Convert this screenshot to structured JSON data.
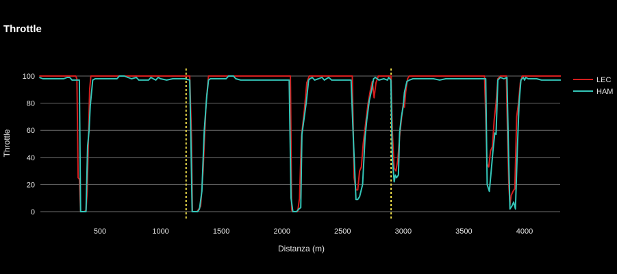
{
  "chart_data": {
    "type": "line",
    "title": "Throttle",
    "xlabel": "Distanza (m)",
    "ylabel": "Throttle",
    "xlim": [
      0,
      4300
    ],
    "ylim": [
      -5,
      105
    ],
    "x_ticks": [
      500,
      1000,
      1500,
      2000,
      2500,
      3000,
      3500,
      4000
    ],
    "y_ticks": [
      0,
      20,
      40,
      60,
      80,
      100
    ],
    "grid": "horizontal",
    "legend_position": "right",
    "vertical_markers": [
      {
        "x": 1210,
        "color": "#f0e04a"
      },
      {
        "x": 2900,
        "color": "#f0e04a"
      }
    ],
    "series": [
      {
        "name": "LEC",
        "color": "#d41e1e",
        "points": [
          [
            0,
            100
          ],
          [
            300,
            100
          ],
          [
            310,
            98
          ],
          [
            320,
            25
          ],
          [
            330,
            24
          ],
          [
            340,
            0
          ],
          [
            370,
            0
          ],
          [
            385,
            1
          ],
          [
            395,
            15
          ],
          [
            405,
            55
          ],
          [
            415,
            90
          ],
          [
            425,
            100
          ],
          [
            1240,
            100
          ],
          [
            1255,
            55
          ],
          [
            1262,
            0
          ],
          [
            1300,
            0
          ],
          [
            1330,
            4
          ],
          [
            1350,
            30
          ],
          [
            1360,
            50
          ],
          [
            1375,
            80
          ],
          [
            1395,
            100
          ],
          [
            2070,
            100
          ],
          [
            2080,
            2
          ],
          [
            2085,
            0
          ],
          [
            2130,
            0
          ],
          [
            2145,
            10
          ],
          [
            2160,
            55
          ],
          [
            2185,
            75
          ],
          [
            2205,
            95
          ],
          [
            2225,
            100
          ],
          [
            2580,
            100
          ],
          [
            2595,
            25
          ],
          [
            2610,
            16
          ],
          [
            2625,
            16
          ],
          [
            2640,
            30
          ],
          [
            2655,
            33
          ],
          [
            2670,
            50
          ],
          [
            2690,
            65
          ],
          [
            2710,
            80
          ],
          [
            2730,
            90
          ],
          [
            2745,
            96
          ],
          [
            2760,
            84
          ],
          [
            2775,
            95
          ],
          [
            2795,
            100
          ],
          [
            2900,
            100
          ],
          [
            2910,
            60
          ],
          [
            2925,
            32
          ],
          [
            2940,
            30
          ],
          [
            2955,
            38
          ],
          [
            2970,
            55
          ],
          [
            2985,
            68
          ],
          [
            3000,
            80
          ],
          [
            3010,
            77
          ],
          [
            3020,
            88
          ],
          [
            3035,
            98
          ],
          [
            3050,
            100
          ],
          [
            3670,
            100
          ],
          [
            3680,
            70
          ],
          [
            3690,
            35
          ],
          [
            3705,
            33
          ],
          [
            3720,
            45
          ],
          [
            3735,
            48
          ],
          [
            3750,
            68
          ],
          [
            3765,
            80
          ],
          [
            3780,
            98
          ],
          [
            3800,
            100
          ],
          [
            3850,
            100
          ],
          [
            3860,
            55
          ],
          [
            3870,
            20
          ],
          [
            3880,
            5
          ],
          [
            3890,
            12
          ],
          [
            3905,
            15
          ],
          [
            3920,
            17
          ],
          [
            3935,
            70
          ],
          [
            3950,
            80
          ],
          [
            3965,
            95
          ],
          [
            3980,
            100
          ],
          [
            4300,
            100
          ]
        ]
      },
      {
        "name": "HAM",
        "color": "#34c6b9",
        "points": [
          [
            0,
            99
          ],
          [
            30,
            98
          ],
          [
            200,
            98
          ],
          [
            230,
            99
          ],
          [
            250,
            99
          ],
          [
            270,
            97
          ],
          [
            320,
            97
          ],
          [
            330,
            97
          ],
          [
            340,
            0
          ],
          [
            370,
            0
          ],
          [
            385,
            0
          ],
          [
            398,
            48
          ],
          [
            410,
            60
          ],
          [
            420,
            78
          ],
          [
            440,
            97
          ],
          [
            460,
            98
          ],
          [
            640,
            98
          ],
          [
            660,
            100
          ],
          [
            700,
            100
          ],
          [
            760,
            98
          ],
          [
            800,
            99
          ],
          [
            820,
            97
          ],
          [
            900,
            97
          ],
          [
            920,
            99
          ],
          [
            940,
            98
          ],
          [
            960,
            97
          ],
          [
            980,
            99
          ],
          [
            1000,
            98
          ],
          [
            1050,
            97
          ],
          [
            1100,
            98
          ],
          [
            1200,
            98
          ],
          [
            1240,
            97
          ],
          [
            1250,
            50
          ],
          [
            1260,
            0
          ],
          [
            1305,
            0
          ],
          [
            1320,
            2
          ],
          [
            1340,
            15
          ],
          [
            1360,
            60
          ],
          [
            1380,
            85
          ],
          [
            1395,
            97
          ],
          [
            1410,
            98
          ],
          [
            1540,
            98
          ],
          [
            1560,
            100
          ],
          [
            1600,
            100
          ],
          [
            1620,
            98
          ],
          [
            1660,
            97
          ],
          [
            2060,
            97
          ],
          [
            2075,
            10
          ],
          [
            2090,
            0
          ],
          [
            2120,
            0
          ],
          [
            2140,
            2
          ],
          [
            2155,
            3
          ],
          [
            2165,
            57
          ],
          [
            2200,
            80
          ],
          [
            2220,
            97
          ],
          [
            2230,
            98
          ],
          [
            2250,
            99
          ],
          [
            2270,
            97
          ],
          [
            2300,
            98
          ],
          [
            2330,
            99
          ],
          [
            2350,
            97
          ],
          [
            2385,
            99
          ],
          [
            2410,
            97
          ],
          [
            2570,
            97
          ],
          [
            2588,
            55
          ],
          [
            2610,
            9
          ],
          [
            2625,
            9
          ],
          [
            2640,
            11
          ],
          [
            2665,
            20
          ],
          [
            2685,
            55
          ],
          [
            2700,
            68
          ],
          [
            2720,
            82
          ],
          [
            2740,
            90
          ],
          [
            2755,
            98
          ],
          [
            2770,
            99
          ],
          [
            2800,
            97
          ],
          [
            2840,
            98
          ],
          [
            2870,
            97
          ],
          [
            2880,
            99
          ],
          [
            2898,
            97
          ],
          [
            2910,
            40
          ],
          [
            2925,
            22
          ],
          [
            2935,
            27
          ],
          [
            2945,
            25
          ],
          [
            2960,
            27
          ],
          [
            2970,
            58
          ],
          [
            2985,
            70
          ],
          [
            3000,
            78
          ],
          [
            3010,
            88
          ],
          [
            3030,
            96
          ],
          [
            3050,
            97
          ],
          [
            3080,
            98
          ],
          [
            3100,
            98
          ],
          [
            3150,
            98
          ],
          [
            3180,
            98
          ],
          [
            3200,
            98
          ],
          [
            3250,
            98
          ],
          [
            3300,
            97
          ],
          [
            3350,
            98
          ],
          [
            3400,
            98
          ],
          [
            3450,
            98
          ],
          [
            3500,
            98
          ],
          [
            3550,
            98
          ],
          [
            3600,
            98
          ],
          [
            3680,
            98
          ],
          [
            3692,
            20
          ],
          [
            3710,
            15
          ],
          [
            3725,
            30
          ],
          [
            3740,
            45
          ],
          [
            3755,
            58
          ],
          [
            3765,
            57
          ],
          [
            3780,
            97
          ],
          [
            3800,
            99
          ],
          [
            3830,
            98
          ],
          [
            3855,
            99
          ],
          [
            3870,
            35
          ],
          [
            3880,
            2
          ],
          [
            3895,
            4
          ],
          [
            3910,
            7
          ],
          [
            3925,
            2
          ],
          [
            3940,
            45
          ],
          [
            3955,
            80
          ],
          [
            3970,
            97
          ],
          [
            3990,
            99
          ],
          [
            4000,
            97
          ],
          [
            4010,
            99
          ],
          [
            4030,
            98
          ],
          [
            4100,
            98
          ],
          [
            4140,
            97
          ],
          [
            4300,
            97
          ]
        ]
      }
    ]
  }
}
